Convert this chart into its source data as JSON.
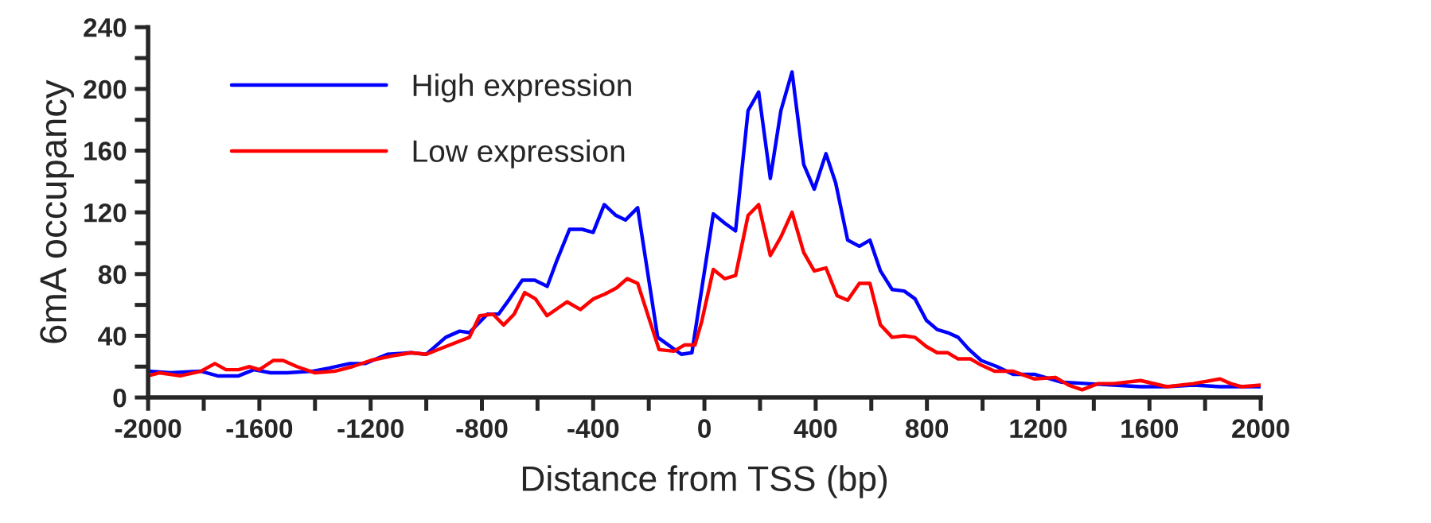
{
  "chart_data": {
    "type": "line",
    "xlabel": "Distance from TSS (bp)",
    "ylabel": "6mA occupancy",
    "xlim": [
      -2000,
      2000
    ],
    "ylim": [
      0,
      240
    ],
    "xticks": [
      -2000,
      {
        "value": -1800,
        "label": null
      },
      -1600,
      {
        "value": -1400,
        "label": null
      },
      -1200,
      {
        "value": -1000,
        "label": null
      },
      -800,
      {
        "value": -600,
        "label": null
      },
      -400,
      {
        "value": -200,
        "label": null
      },
      0,
      {
        "value": 200,
        "label": null
      },
      400,
      {
        "value": 600,
        "label": null
      },
      800,
      {
        "value": 1000,
        "label": null
      },
      1200,
      {
        "value": 1400,
        "label": null
      },
      1600,
      {
        "value": 1800,
        "label": null
      },
      2000
    ],
    "yticks": [
      0,
      {
        "value": 20,
        "label": null
      },
      40,
      {
        "value": 60,
        "label": null
      },
      80,
      {
        "value": 100,
        "label": null
      },
      120,
      {
        "value": 140,
        "label": null
      },
      160,
      {
        "value": 180,
        "label": null
      },
      200,
      {
        "value": 220,
        "label": null
      },
      240
    ],
    "grid": false,
    "legend": "top left",
    "marker": "none",
    "line_style": "solid",
    "series": [
      {
        "name": "High expression",
        "color": "#0000ff",
        "x": [
          -2000,
          -1920,
          -1810,
          -1750,
          -1675,
          -1620,
          -1560,
          -1500,
          -1410,
          -1350,
          -1275,
          -1220,
          -1140,
          -1055,
          -1000,
          -930,
          -880,
          -845,
          -780,
          -740,
          -700,
          -655,
          -610,
          -565,
          -530,
          -485,
          -440,
          -400,
          -360,
          -318,
          -284,
          -240,
          -168,
          -83,
          -45,
          32,
          73,
          112,
          157,
          195,
          237,
          275,
          315,
          357,
          395,
          437,
          472,
          515,
          557,
          595,
          633,
          675,
          718,
          757,
          798,
          837,
          875,
          912,
          952,
          995,
          1052,
          1110,
          1186,
          1282,
          1377,
          1472,
          1568,
          1663,
          1758,
          1854,
          1930,
          2000
        ],
        "values": [
          17,
          16,
          17,
          14,
          14,
          18,
          16,
          16,
          17,
          19,
          22,
          22,
          28,
          29,
          28,
          39,
          43,
          42,
          54,
          54,
          64,
          76,
          76,
          72,
          89,
          109,
          109,
          107,
          125,
          118,
          115,
          123,
          39,
          28,
          29,
          119,
          113,
          108,
          186,
          198,
          142,
          186,
          211,
          151,
          135,
          158,
          139,
          102,
          98,
          102,
          82,
          70,
          69,
          64,
          50,
          44,
          42,
          39,
          31,
          24,
          20,
          15,
          15,
          10,
          9,
          8,
          7,
          7,
          8,
          7,
          7,
          7
        ]
      },
      {
        "name": "Low expression",
        "color": "#ff0000",
        "x": [
          -2000,
          -1960,
          -1885,
          -1810,
          -1760,
          -1720,
          -1675,
          -1635,
          -1600,
          -1550,
          -1515,
          -1465,
          -1400,
          -1330,
          -1265,
          -1200,
          -1120,
          -1055,
          -1000,
          -930,
          -845,
          -808,
          -760,
          -722,
          -684,
          -646,
          -608,
          -566,
          -494,
          -446,
          -398,
          -358,
          -316,
          -278,
          -240,
          -163,
          -110,
          -72,
          -34,
          -10,
          32,
          73,
          112,
          157,
          195,
          237,
          275,
          315,
          357,
          395,
          437,
          477,
          515,
          557,
          595,
          633,
          675,
          718,
          757,
          798,
          837,
          875,
          912,
          957,
          995,
          1043,
          1110,
          1186,
          1262,
          1310,
          1358,
          1415,
          1472,
          1568,
          1663,
          1758,
          1854,
          1892,
          1930,
          2000
        ],
        "values": [
          14,
          16,
          14,
          17,
          22,
          18,
          18,
          20,
          18,
          24,
          24,
          20,
          16,
          17,
          20,
          24,
          27,
          29,
          28,
          33,
          39,
          53,
          54,
          47,
          54,
          68,
          64,
          53,
          62,
          57,
          64,
          67,
          71,
          77,
          74,
          31,
          30,
          34,
          34,
          49,
          83,
          77,
          79,
          118,
          125,
          92,
          104,
          120,
          94,
          82,
          84,
          66,
          63,
          74,
          74,
          47,
          39,
          40,
          39,
          33,
          29,
          29,
          25,
          25,
          21,
          17,
          17,
          12,
          13,
          8,
          5,
          9,
          9,
          11,
          7,
          9,
          12,
          9,
          7,
          8
        ]
      }
    ]
  }
}
